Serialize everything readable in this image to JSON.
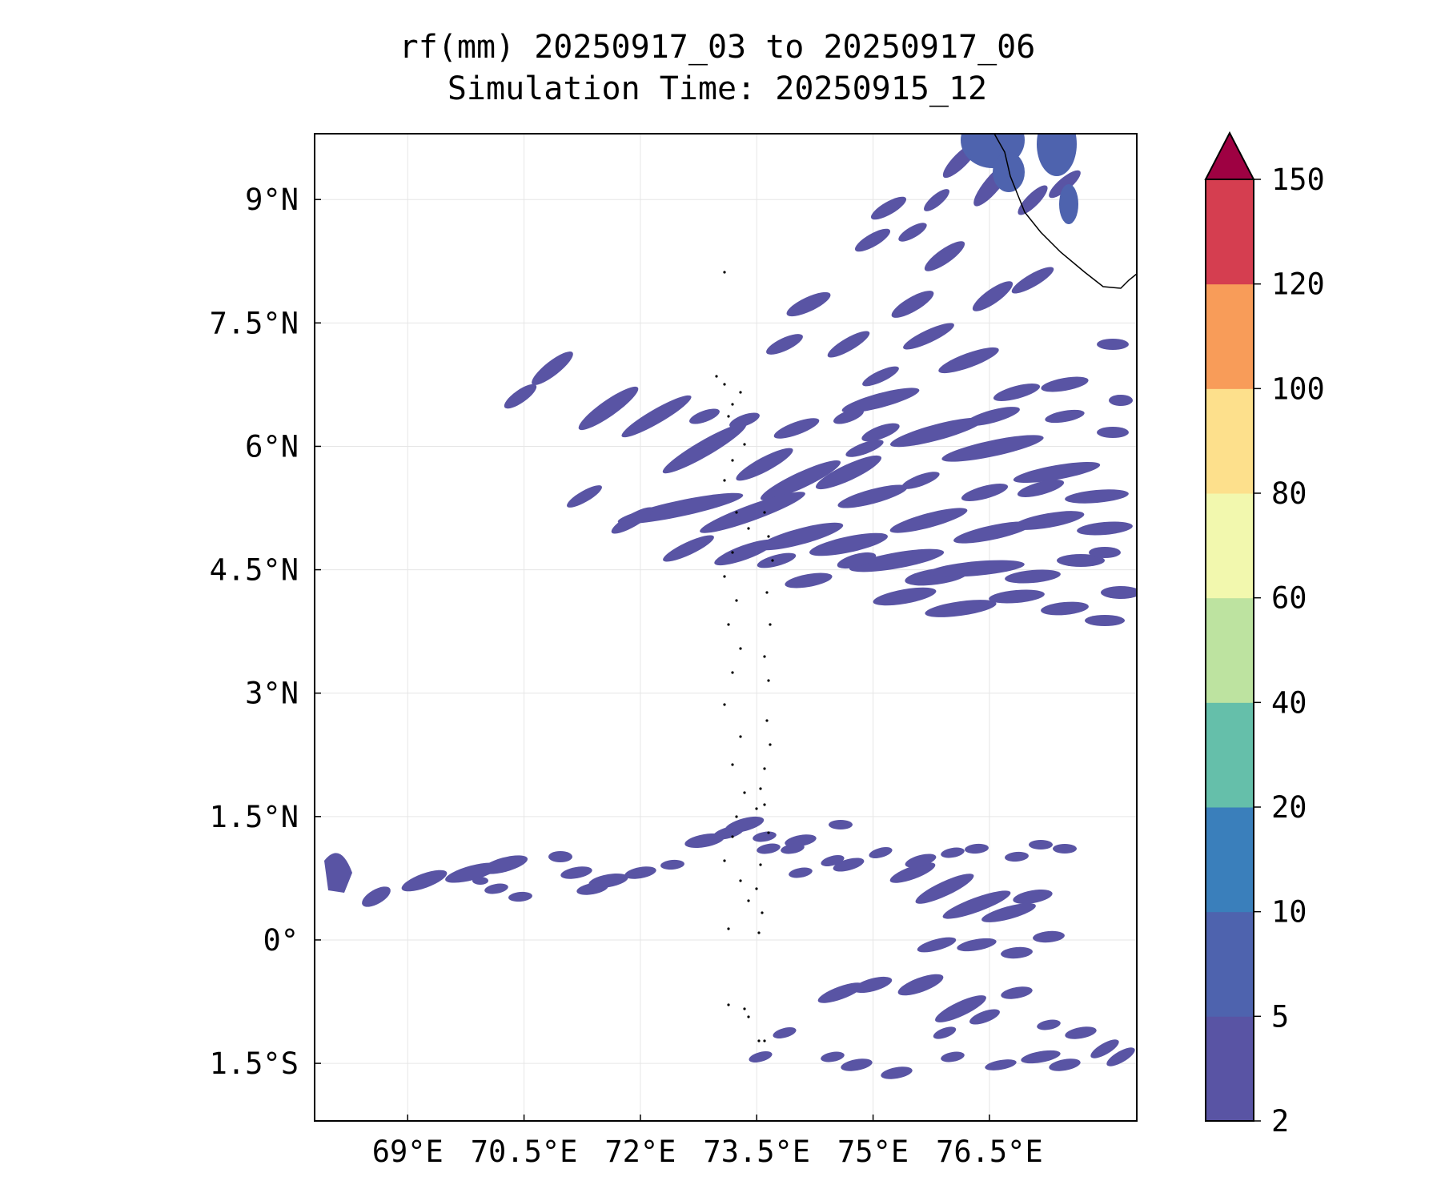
{
  "title": {
    "line1": "rf(mm) 20250917_03 to 20250917_06",
    "line2": "Simulation Time: 20250915_12"
  },
  "map": {
    "lon_range": [
      67.8,
      78.4
    ],
    "lat_range": [
      -2.2,
      9.8
    ],
    "x_ticks": [
      {
        "value": 69.0,
        "label": "69°E"
      },
      {
        "value": 70.5,
        "label": "70.5°E"
      },
      {
        "value": 72.0,
        "label": "72°E"
      },
      {
        "value": 73.5,
        "label": "73.5°E"
      },
      {
        "value": 75.0,
        "label": "75°E"
      },
      {
        "value": 76.5,
        "label": "76.5°E"
      }
    ],
    "y_ticks": [
      {
        "value": 9.0,
        "label": "9°N"
      },
      {
        "value": 7.5,
        "label": "7.5°N"
      },
      {
        "value": 6.0,
        "label": "6°N"
      },
      {
        "value": 4.5,
        "label": "4.5°N"
      },
      {
        "value": 3.0,
        "label": "3°N"
      },
      {
        "value": 1.5,
        "label": "1.5°N"
      },
      {
        "value": 0.0,
        "label": "0°"
      },
      {
        "value": -1.5,
        "label": "1.5°S"
      }
    ],
    "grid": true,
    "coastline_color": "#000000",
    "rain_cells_note_color": "#5954a4"
  },
  "colorbar": {
    "levels": [
      2,
      5,
      10,
      20,
      40,
      60,
      80,
      100,
      120,
      150
    ],
    "labels": [
      "2",
      "5",
      "10",
      "20",
      "40",
      "60",
      "80",
      "100",
      "120",
      "150"
    ],
    "colors": [
      "#5954a4",
      "#4e63ae",
      "#3a7fbb",
      "#65bfaa",
      "#bde3a0",
      "#f2f8ae",
      "#fde08c",
      "#f89c59",
      "#d53e50"
    ],
    "extend_color": "#9e0142",
    "extend": "max",
    "placement": "right"
  }
}
